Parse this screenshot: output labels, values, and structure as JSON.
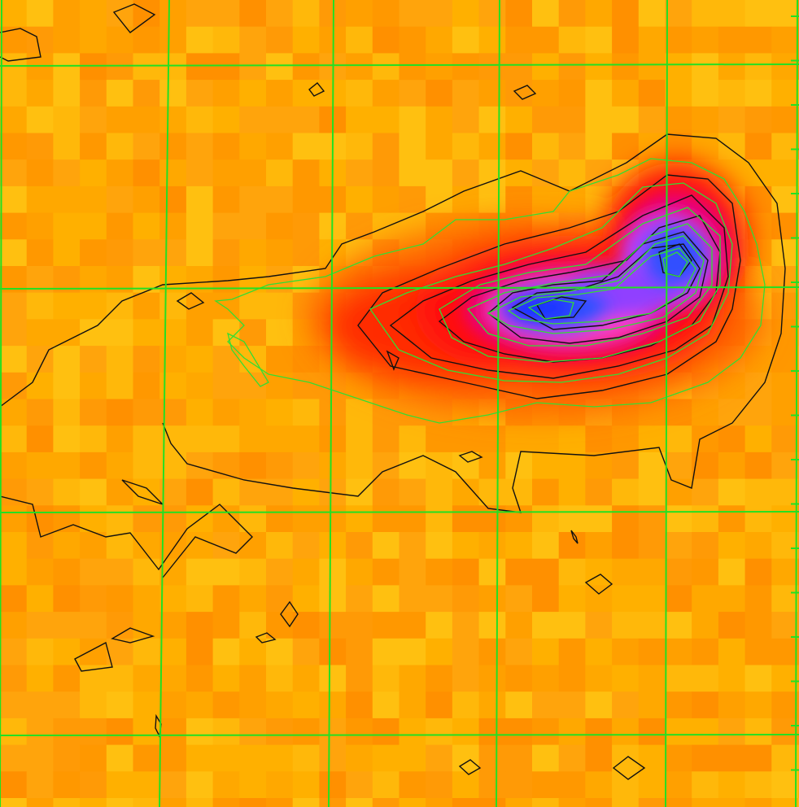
{
  "image": {
    "kind": "radio-continuum-overlay",
    "colormap": [
      "#ffb000",
      "#ffa000",
      "#ff8a00",
      "#ff6a00",
      "#ff3a00",
      "#ff0a20",
      "#e8007a",
      "#ff40c0",
      "#b040ff",
      "#3050ff",
      "#2a3cff"
    ],
    "background_color": "#ffa30a",
    "grid_color": "#22e022",
    "contour_black_color": "#111111",
    "contour_green_color": "#33dd33"
  }
}
